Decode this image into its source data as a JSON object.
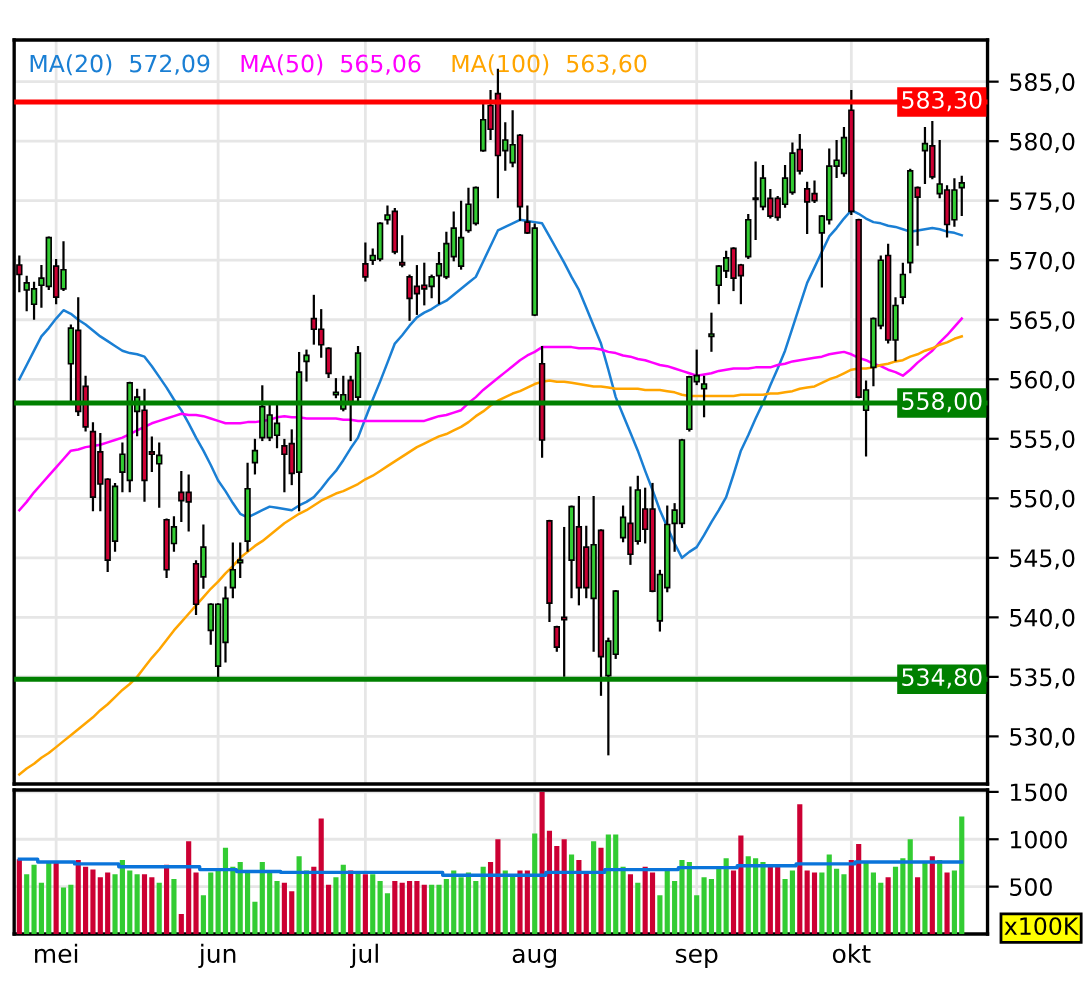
{
  "chart_data": [
    {
      "type": "candlestick",
      "categories": [
        null,
        null,
        null,
        null,
        null,
        null,
        null,
        null,
        null,
        null,
        null,
        null,
        null,
        null,
        null,
        null,
        null,
        null,
        null,
        null,
        null,
        null,
        null,
        null,
        null,
        null,
        null,
        null,
        null,
        null,
        null,
        null,
        null,
        null,
        null,
        null,
        null,
        null,
        null,
        null,
        null,
        null,
        null,
        null,
        null,
        null,
        null,
        null,
        null,
        null,
        null,
        null,
        null,
        null,
        null,
        null,
        null,
        null,
        null,
        null,
        null,
        null,
        null,
        null,
        null,
        null,
        null,
        null,
        null,
        null,
        null,
        null,
        null,
        null,
        null,
        null,
        null,
        null,
        null,
        null,
        null,
        null,
        null,
        null,
        null,
        null,
        null,
        null,
        null,
        null,
        null,
        null,
        null,
        null,
        null,
        null,
        null,
        null,
        null,
        null,
        null,
        null,
        null,
        null,
        null,
        null,
        null,
        null,
        null,
        null,
        null,
        null,
        null,
        null,
        null,
        null,
        null,
        null,
        null,
        null,
        null,
        null,
        null,
        null,
        null,
        null,
        null,
        null,
        null
      ],
      "ohlc": [
        [
          569.6,
          570.3,
          567.4,
          568.8
        ],
        [
          567.5,
          568.6,
          565.8,
          568.1
        ],
        [
          566.3,
          568.1,
          565.1,
          567.6
        ],
        [
          567.9,
          569.5,
          566.1,
          568.5
        ],
        [
          567.8,
          571.9,
          567.6,
          571.9
        ],
        [
          569.5,
          570.0,
          566.4,
          566.9
        ],
        [
          567.6,
          571.5,
          567.5,
          569.2
        ],
        [
          561.3,
          564.5,
          558.2,
          564.3
        ],
        [
          564.1,
          566.8,
          557.0,
          557.3
        ],
        [
          559.4,
          560.2,
          555.7,
          556.0
        ],
        [
          555.6,
          556.3,
          549.0,
          550.1
        ],
        [
          553.9,
          555.4,
          549.0,
          551.2
        ],
        [
          551.6,
          551.6,
          543.9,
          544.8
        ],
        [
          546.4,
          551.2,
          545.6,
          551.0
        ],
        [
          552.2,
          554.6,
          550.6,
          553.7
        ],
        [
          551.5,
          559.7,
          550.6,
          559.7
        ],
        [
          557.3,
          559.1,
          555.3,
          558.5
        ],
        [
          557.4,
          559.1,
          549.8,
          551.5
        ],
        [
          553.9,
          555.1,
          552.3,
          553.7
        ],
        [
          552.9,
          554.6,
          549.3,
          553.6
        ],
        [
          548.2,
          548.2,
          543.4,
          544.0
        ],
        [
          546.2,
          548.4,
          545.6,
          547.6
        ],
        [
          550.5,
          552.2,
          548.1,
          549.8
        ],
        [
          550.5,
          551.9,
          547.3,
          549.7
        ],
        [
          544.5,
          544.7,
          540.3,
          541.1
        ],
        [
          543.4,
          547.7,
          542.5,
          545.9
        ],
        [
          538.9,
          541.1,
          537.8,
          541.1
        ],
        [
          535.9,
          541.1,
          534.7,
          541.1
        ],
        [
          537.9,
          542.5,
          536.3,
          541.6
        ],
        [
          542.5,
          546.2,
          541.7,
          544.0
        ],
        [
          544.6,
          546.2,
          543.4,
          544.8
        ],
        [
          546.4,
          552.9,
          545.6,
          550.8
        ],
        [
          553.0,
          554.9,
          552.1,
          554.0
        ],
        [
          555.1,
          559.4,
          554.9,
          557.7
        ],
        [
          555.1,
          558.0,
          554.9,
          557.0
        ],
        [
          555.3,
          558.0,
          554.3,
          556.3
        ],
        [
          554.4,
          554.9,
          550.6,
          553.7
        ],
        [
          554.6,
          555.7,
          551.2,
          552.1
        ],
        [
          552.2,
          562.2,
          549.0,
          560.6
        ],
        [
          561.5,
          562.4,
          559.9,
          562.0
        ],
        [
          565.1,
          567.0,
          563.0,
          564.2
        ],
        [
          564.2,
          565.8,
          561.9,
          562.9
        ],
        [
          562.6,
          562.6,
          560.2,
          560.5
        ],
        [
          558.7,
          560.0,
          558.5,
          558.9
        ],
        [
          557.5,
          560.2,
          557.4,
          558.7
        ],
        [
          559.9,
          560.2,
          554.9,
          557.9
        ],
        [
          558.5,
          562.7,
          558.2,
          562.2
        ],
        [
          569.7,
          571.4,
          568.3,
          568.6
        ],
        [
          570.0,
          570.9,
          569.7,
          570.4
        ],
        [
          570.1,
          573.1,
          570.0,
          573.1
        ],
        [
          573.4,
          574.5,
          573.1,
          573.8
        ],
        [
          574.1,
          574.3,
          570.6,
          570.7
        ],
        [
          569.8,
          572.0,
          569.5,
          569.6
        ],
        [
          568.6,
          568.7,
          565.0,
          566.8
        ],
        [
          567.8,
          569.5,
          565.5,
          567.2
        ],
        [
          567.9,
          569.7,
          566.3,
          567.6
        ],
        [
          567.8,
          568.7,
          566.9,
          568.6
        ],
        [
          568.7,
          570.6,
          566.4,
          569.7
        ],
        [
          568.6,
          572.3,
          568.5,
          571.4
        ],
        [
          570.3,
          574.0,
          570.0,
          572.7
        ],
        [
          569.5,
          574.9,
          569.3,
          571.9
        ],
        [
          572.5,
          576.0,
          572.4,
          574.7
        ],
        [
          573.1,
          576.1,
          573.0,
          576.1
        ],
        [
          579.2,
          583.2,
          579.2,
          581.8
        ],
        [
          583.0,
          584.2,
          580.2,
          581.0
        ],
        [
          584.0,
          586.0,
          575.3,
          578.8
        ],
        [
          579.2,
          581.5,
          577.6,
          580.1
        ],
        [
          578.2,
          582.5,
          577.9,
          579.7
        ],
        [
          580.5,
          580.5,
          573.4,
          574.5
        ],
        [
          573.2,
          574.5,
          572.3,
          572.3
        ],
        [
          565.4,
          573.0,
          565.4,
          572.7
        ],
        [
          561.3,
          562.7,
          553.5,
          554.9
        ],
        [
          548.1,
          548.1,
          539.7,
          541.2
        ],
        [
          539.2,
          539.2,
          537.2,
          537.5
        ],
        [
          540.0,
          547.5,
          535.1,
          539.8
        ],
        [
          544.8,
          549.3,
          541.7,
          549.3
        ],
        [
          547.6,
          550.1,
          541.1,
          542.5
        ],
        [
          545.9,
          547.6,
          541.7,
          542.5
        ],
        [
          541.6,
          550.1,
          537.2,
          546.1
        ],
        [
          547.3,
          547.3,
          533.5,
          536.7
        ],
        [
          535.1,
          538.2,
          528.5,
          538.0
        ],
        [
          536.9,
          542.2,
          536.6,
          542.2
        ],
        [
          546.7,
          549.3,
          546.4,
          548.4
        ],
        [
          547.9,
          550.9,
          544.5,
          545.3
        ],
        [
          546.4,
          551.8,
          546.2,
          550.7
        ],
        [
          549.1,
          550.8,
          546.3,
          547.4
        ],
        [
          549.1,
          551.2,
          542.2,
          542.2
        ],
        [
          539.7,
          543.9,
          538.9,
          543.6
        ],
        [
          542.5,
          549.3,
          542.2,
          547.8
        ],
        [
          547.9,
          549.5,
          545.6,
          549.0
        ],
        [
          547.9,
          554.9,
          547.6,
          554.9
        ],
        [
          555.8,
          560.2,
          555.7,
          560.2
        ],
        [
          559.8,
          562.4,
          559.6,
          560.3
        ],
        [
          559.2,
          560.2,
          556.9,
          559.6
        ],
        [
          563.6,
          565.5,
          562.4,
          563.8
        ],
        [
          567.9,
          569.5,
          566.4,
          569.5
        ],
        [
          569.1,
          570.7,
          568.6,
          570.2
        ],
        [
          571.0,
          571.0,
          567.5,
          568.5
        ],
        [
          569.6,
          569.6,
          566.4,
          568.7
        ],
        [
          570.3,
          573.8,
          570.2,
          573.4
        ],
        [
          575.1,
          578.2,
          571.8,
          575.2
        ],
        [
          574.5,
          577.9,
          574.3,
          576.9
        ],
        [
          575.2,
          575.9,
          573.6,
          573.7
        ],
        [
          575.2,
          575.3,
          573.4,
          573.6
        ],
        [
          574.7,
          577.9,
          574.5,
          576.9
        ],
        [
          575.7,
          579.8,
          575.6,
          579.0
        ],
        [
          579.3,
          580.5,
          577.3,
          577.5
        ],
        [
          576.0,
          576.5,
          572.3,
          574.9
        ],
        [
          575.6,
          576.6,
          574.9,
          575.0
        ],
        [
          572.3,
          573.7,
          567.8,
          573.7
        ],
        [
          573.4,
          579.3,
          573.1,
          577.9
        ],
        [
          577.9,
          580.0,
          577.0,
          578.4
        ],
        [
          577.3,
          581.1,
          577.1,
          580.3
        ],
        [
          582.6,
          584.2,
          573.9,
          574.1
        ],
        [
          573.4,
          573.4,
          558.5,
          558.5
        ],
        [
          557.4,
          559.8,
          553.6,
          559.1
        ],
        [
          561.0,
          565.1,
          559.5,
          565.1
        ],
        [
          564.5,
          570.3,
          564.3,
          570.0
        ],
        [
          570.4,
          571.3,
          563.1,
          563.3
        ],
        [
          563.3,
          566.8,
          561.6,
          566.2
        ],
        [
          566.9,
          569.7,
          566.4,
          568.8
        ],
        [
          569.8,
          577.6,
          569.0,
          577.5
        ],
        [
          576.1,
          576.1,
          571.3,
          575.3
        ],
        [
          579.2,
          581.1,
          576.5,
          579.8
        ],
        [
          579.6,
          581.6,
          576.9,
          577.0
        ],
        [
          575.6,
          580.0,
          575.3,
          576.4
        ],
        [
          575.9,
          576.2,
          572.0,
          573.0
        ],
        [
          573.4,
          576.8,
          572.9,
          575.9
        ],
        [
          576.1,
          577.0,
          573.8,
          576.5
        ]
      ],
      "colors": [
        "#cc0033",
        "#33cc33",
        "#33cc33",
        "#33cc33",
        "#33cc33",
        "#cc0033",
        "#33cc33",
        "#33cc33",
        "#cc0033",
        "#cc0033",
        "#cc0033",
        "#cc0033",
        "#cc0033",
        "#33cc33",
        "#33cc33",
        "#33cc33",
        "#33cc33",
        "#cc0033",
        "#cc0033",
        "#33cc33",
        "#cc0033",
        "#33cc33",
        "#cc0033",
        "#cc0033",
        "#cc0033",
        "#33cc33",
        "#33cc33",
        "#33cc33",
        "#33cc33",
        "#33cc33",
        "#33cc33",
        "#33cc33",
        "#33cc33",
        "#33cc33",
        "#33cc33",
        "#33cc33",
        "#cc0033",
        "#cc0033",
        "#33cc33",
        "#33cc33",
        "#cc0033",
        "#cc0033",
        "#cc0033",
        "#33cc33",
        "#33cc33",
        "#cc0033",
        "#33cc33",
        "#cc0033",
        "#33cc33",
        "#33cc33",
        "#33cc33",
        "#cc0033",
        "#cc0033",
        "#cc0033",
        "#cc0033",
        "#cc0033",
        "#33cc33",
        "#33cc33",
        "#33cc33",
        "#33cc33",
        "#33cc33",
        "#33cc33",
        "#33cc33",
        "#33cc33",
        "#cc0033",
        "#cc0033",
        "#33cc33",
        "#33cc33",
        "#cc0033",
        "#cc0033",
        "#33cc33",
        "#cc0033",
        "#cc0033",
        "#cc0033",
        "#cc0033",
        "#33cc33",
        "#cc0033",
        "#cc0033",
        "#33cc33",
        "#cc0033",
        "#33cc33",
        "#33cc33",
        "#33cc33",
        "#cc0033",
        "#33cc33",
        "#cc0033",
        "#cc0033",
        "#33cc33",
        "#33cc33",
        "#33cc33",
        "#33cc33",
        "#33cc33",
        "#33cc33",
        "#33cc33",
        "#33cc33",
        "#33cc33",
        "#33cc33",
        "#cc0033",
        "#cc0033",
        "#33cc33",
        "#33cc33",
        "#33cc33",
        "#cc0033",
        "#cc0033",
        "#33cc33",
        "#33cc33",
        "#cc0033",
        "#cc0033",
        "#cc0033",
        "#33cc33",
        "#33cc33",
        "#33cc33",
        "#33cc33",
        "#cc0033",
        "#cc0033",
        "#33cc33",
        "#33cc33",
        "#33cc33",
        "#cc0033",
        "#33cc33",
        "#33cc33",
        "#33cc33",
        "#cc0033",
        "#33cc33",
        "#cc0033",
        "#33cc33",
        "#cc0033",
        "#33cc33",
        "#33cc33"
      ],
      "series": [
        {
          "type": "line",
          "name": "MA(20)  572,09",
          "color": "#1a7fd4",
          "values": [
            560.0,
            561.2,
            562.4,
            563.6,
            564.3,
            565.1,
            565.8,
            565.5,
            565.0,
            564.6,
            564.1,
            563.6,
            563.2,
            562.8,
            562.4,
            562.2,
            562.1,
            561.9,
            561.1,
            560.2,
            559.3,
            558.3,
            557.4,
            556.3,
            555.1,
            554.0,
            552.8,
            551.5,
            550.6,
            549.6,
            548.7,
            548.4,
            548.7,
            549.0,
            549.3,
            549.2,
            549.1,
            549.0,
            549.4,
            549.7,
            550.1,
            550.8,
            551.6,
            552.3,
            553.2,
            554.2,
            555.1,
            556.7,
            558.3,
            559.8,
            561.4,
            563.0,
            563.7,
            564.5,
            565.2,
            565.6,
            565.9,
            566.3,
            566.6,
            567.1,
            567.6,
            568.1,
            568.6,
            569.9,
            571.2,
            572.5,
            572.8,
            573.1,
            573.4,
            573.3,
            573.2,
            573.1,
            572.0,
            570.9,
            569.8,
            568.6,
            567.5,
            566.0,
            564.5,
            563.0,
            560.8,
            558.5,
            557.0,
            555.5,
            554.0,
            552.3,
            550.7,
            549.0,
            547.6,
            546.2,
            545.0,
            545.5,
            545.9,
            546.9,
            548.0,
            549.0,
            550.1,
            552.0,
            554.0,
            555.3,
            556.7,
            558.0,
            559.5,
            560.9,
            562.4,
            564.3,
            566.2,
            568.1,
            569.4,
            570.7,
            572.0,
            572.7,
            573.5,
            574.2,
            573.9,
            573.5,
            573.2,
            573.1,
            572.9,
            572.8,
            572.6,
            572.4,
            572.5,
            572.6,
            572.7,
            572.6,
            572.4,
            572.3,
            572.1
          ]
        },
        {
          "type": "line",
          "name": "MA(50)  565,06",
          "color": "#ff00ff",
          "values": [
            549.0,
            549.7,
            550.5,
            551.2,
            551.9,
            552.6,
            553.3,
            554.0,
            554.1,
            554.3,
            554.4,
            554.5,
            554.7,
            554.9,
            555.1,
            555.4,
            555.7,
            556.0,
            556.3,
            556.5,
            556.7,
            556.9,
            557.1,
            557.0,
            557.0,
            556.9,
            556.7,
            556.5,
            556.3,
            556.3,
            556.3,
            556.4,
            556.4,
            556.5,
            556.6,
            556.8,
            556.9,
            556.8,
            556.8,
            556.7,
            556.7,
            556.7,
            556.7,
            556.7,
            556.6,
            556.6,
            556.5,
            556.5,
            556.5,
            556.5,
            556.5,
            556.5,
            556.5,
            556.5,
            556.5,
            556.5,
            556.7,
            556.9,
            557.0,
            557.2,
            557.4,
            558.0,
            558.5,
            559.1,
            559.6,
            560.1,
            560.6,
            561.1,
            561.6,
            562.0,
            562.3,
            562.7,
            562.7,
            562.7,
            562.7,
            562.7,
            562.6,
            562.6,
            562.6,
            562.5,
            562.3,
            562.2,
            562.0,
            561.9,
            561.7,
            561.6,
            561.4,
            561.2,
            561.1,
            560.9,
            560.7,
            560.5,
            560.3,
            560.4,
            560.5,
            560.7,
            560.8,
            560.9,
            560.9,
            560.9,
            561.0,
            561.0,
            561.0,
            561.2,
            561.3,
            561.5,
            561.6,
            561.7,
            561.8,
            561.9,
            562.1,
            562.2,
            562.3,
            562.1,
            561.8,
            561.6,
            561.3,
            561.1,
            560.8,
            560.6,
            560.3,
            560.8,
            561.4,
            561.9,
            562.4,
            563.1,
            563.7,
            564.4,
            565.1
          ]
        },
        {
          "type": "line",
          "name": "MA(100)  563,60",
          "color": "#ffa500",
          "values": [
            526.8,
            527.3,
            527.7,
            528.2,
            528.6,
            529.1,
            529.6,
            530.1,
            530.6,
            531.1,
            531.6,
            532.2,
            532.7,
            533.3,
            533.9,
            534.4,
            535.0,
            535.8,
            536.6,
            537.3,
            538.1,
            538.9,
            539.6,
            540.3,
            541.0,
            541.7,
            542.4,
            543.0,
            543.7,
            544.3,
            545.0,
            545.5,
            546.0,
            546.4,
            546.9,
            547.4,
            547.9,
            548.3,
            548.7,
            549.0,
            549.4,
            549.8,
            550.1,
            550.4,
            550.6,
            550.9,
            551.2,
            551.6,
            551.9,
            552.3,
            552.7,
            553.1,
            553.5,
            553.9,
            554.3,
            554.6,
            554.9,
            555.2,
            555.4,
            555.7,
            556.0,
            556.4,
            556.9,
            557.3,
            557.8,
            558.2,
            558.5,
            558.8,
            559.0,
            559.3,
            559.6,
            559.8,
            559.9,
            559.8,
            559.8,
            559.7,
            559.6,
            559.5,
            559.4,
            559.4,
            559.3,
            559.2,
            559.2,
            559.2,
            559.2,
            559.1,
            559.1,
            559.1,
            559.0,
            558.9,
            558.7,
            558.6,
            558.6,
            558.6,
            558.6,
            558.6,
            558.6,
            558.6,
            558.7,
            558.7,
            558.7,
            558.7,
            558.8,
            558.8,
            558.9,
            559.0,
            559.2,
            559.3,
            559.4,
            559.7,
            560.0,
            560.2,
            560.5,
            560.8,
            560.9,
            560.9,
            561.0,
            561.2,
            561.3,
            561.5,
            561.6,
            561.9,
            562.1,
            562.4,
            562.6,
            562.9,
            563.1,
            563.4,
            563.6
          ]
        }
      ],
      "ylim": [
        526,
        588.5
      ],
      "yticks": [
        {
          "value": 530,
          "label": "530,0"
        },
        {
          "value": 535,
          "label": "535,0"
        },
        {
          "value": 540,
          "label": "540,0"
        },
        {
          "value": 545,
          "label": "545,0"
        },
        {
          "value": 550,
          "label": "550,0"
        },
        {
          "value": 555,
          "label": "555,0"
        },
        {
          "value": 560,
          "label": "560,0"
        },
        {
          "value": 565,
          "label": "565,0"
        },
        {
          "value": 570,
          "label": "570,0"
        },
        {
          "value": 575,
          "label": "575,0"
        },
        {
          "value": 580,
          "label": "580,0"
        },
        {
          "value": 585,
          "label": "585,0"
        }
      ],
      "tick_labels": "y",
      "ref_lines": [
        {
          "axis": "y",
          "value": 583.3,
          "label": "583,30",
          "color": "#ff0000"
        },
        {
          "axis": "y",
          "value": 558.0,
          "label": "558,00",
          "color": "#008000"
        },
        {
          "axis": "y",
          "value": 534.8,
          "label": "534,80",
          "color": "#008000"
        }
      ],
      "grid": true,
      "legend": "top left"
    },
    {
      "type": "bar",
      "categories": [
        null,
        null,
        null,
        null,
        null,
        "mei",
        null,
        null,
        null,
        null,
        null,
        null,
        null,
        null,
        null,
        null,
        null,
        null,
        null,
        null,
        null,
        null,
        null,
        null,
        null,
        null,
        null,
        "jun",
        null,
        null,
        null,
        null,
        null,
        null,
        null,
        null,
        null,
        null,
        null,
        null,
        null,
        null,
        null,
        null,
        null,
        null,
        null,
        "jul",
        null,
        null,
        null,
        null,
        null,
        null,
        null,
        null,
        null,
        null,
        null,
        null,
        null,
        null,
        null,
        null,
        null,
        null,
        null,
        null,
        null,
        null,
        "aug",
        null,
        null,
        null,
        null,
        null,
        null,
        null,
        null,
        null,
        null,
        null,
        null,
        null,
        null,
        null,
        null,
        null,
        null,
        null,
        null,
        null,
        "sep",
        null,
        null,
        null,
        null,
        null,
        null,
        null,
        null,
        null,
        null,
        null,
        null,
        null,
        null,
        null,
        null,
        null,
        null,
        null,
        null,
        "okt",
        null,
        null,
        null,
        null,
        null,
        null,
        null,
        null,
        null,
        null,
        null,
        null,
        null,
        null,
        null
      ],
      "series": [
        {
          "type": "bar",
          "values": [
            790,
            630,
            730,
            540,
            750,
            750,
            490,
            520,
            780,
            710,
            680,
            600,
            650,
            630,
            780,
            670,
            630,
            630,
            600,
            540,
            730,
            580,
            210,
            980,
            650,
            410,
            650,
            680,
            910,
            710,
            760,
            670,
            340,
            760,
            650,
            560,
            540,
            450,
            820,
            670,
            710,
            1220,
            520,
            600,
            730,
            670,
            650,
            630,
            630,
            560,
            430,
            560,
            540,
            560,
            560,
            520,
            520,
            520,
            580,
            670,
            600,
            650,
            560,
            710,
            760,
            1000,
            670,
            630,
            670,
            670,
            1060,
            1500,
            1090,
            930,
            1000,
            840,
            780,
            650,
            980,
            910,
            1050,
            1050,
            710,
            630,
            540,
            710,
            650,
            410,
            670,
            560,
            780,
            760,
            410,
            600,
            580,
            710,
            800,
            670,
            1040,
            820,
            800,
            760,
            730,
            730,
            580,
            670,
            1370,
            670,
            650,
            650,
            840,
            690,
            630,
            780,
            950,
            760,
            650,
            540,
            600,
            710,
            800,
            1000,
            600,
            760,
            820,
            780,
            650,
            670,
            1240
          ],
          "colors": [
            "#cc0033",
            "#33cc33",
            "#33cc33",
            "#33cc33",
            "#33cc33",
            "#cc0033",
            "#33cc33",
            "#33cc33",
            "#cc0033",
            "#cc0033",
            "#cc0033",
            "#cc0033",
            "#cc0033",
            "#33cc33",
            "#33cc33",
            "#33cc33",
            "#33cc33",
            "#cc0033",
            "#cc0033",
            "#33cc33",
            "#cc0033",
            "#33cc33",
            "#cc0033",
            "#cc0033",
            "#cc0033",
            "#33cc33",
            "#33cc33",
            "#33cc33",
            "#33cc33",
            "#33cc33",
            "#33cc33",
            "#33cc33",
            "#33cc33",
            "#33cc33",
            "#33cc33",
            "#33cc33",
            "#cc0033",
            "#cc0033",
            "#33cc33",
            "#33cc33",
            "#cc0033",
            "#cc0033",
            "#cc0033",
            "#33cc33",
            "#33cc33",
            "#cc0033",
            "#33cc33",
            "#cc0033",
            "#33cc33",
            "#33cc33",
            "#33cc33",
            "#cc0033",
            "#cc0033",
            "#cc0033",
            "#cc0033",
            "#cc0033",
            "#33cc33",
            "#33cc33",
            "#33cc33",
            "#33cc33",
            "#33cc33",
            "#33cc33",
            "#33cc33",
            "#33cc33",
            "#cc0033",
            "#cc0033",
            "#33cc33",
            "#33cc33",
            "#cc0033",
            "#cc0033",
            "#33cc33",
            "#cc0033",
            "#cc0033",
            "#cc0033",
            "#cc0033",
            "#33cc33",
            "#cc0033",
            "#cc0033",
            "#33cc33",
            "#cc0033",
            "#33cc33",
            "#33cc33",
            "#33cc33",
            "#cc0033",
            "#33cc33",
            "#cc0033",
            "#cc0033",
            "#33cc33",
            "#33cc33",
            "#33cc33",
            "#33cc33",
            "#33cc33",
            "#33cc33",
            "#33cc33",
            "#33cc33",
            "#33cc33",
            "#33cc33",
            "#cc0033",
            "#cc0033",
            "#33cc33",
            "#33cc33",
            "#33cc33",
            "#cc0033",
            "#cc0033",
            "#33cc33",
            "#33cc33",
            "#cc0033",
            "#cc0033",
            "#cc0033",
            "#33cc33",
            "#33cc33",
            "#33cc33",
            "#33cc33",
            "#cc0033",
            "#cc0033",
            "#33cc33",
            "#33cc33",
            "#33cc33",
            "#cc0033",
            "#33cc33",
            "#33cc33",
            "#33cc33",
            "#cc0033",
            "#33cc33",
            "#cc0033",
            "#33cc33",
            "#cc0033",
            "#33cc33",
            "#33cc33"
          ]
        },
        {
          "type": "step",
          "color": "#0a74da",
          "values": [
            790,
            790,
            790,
            760,
            760,
            760,
            760,
            760,
            740,
            740,
            740,
            740,
            740,
            740,
            710,
            710,
            710,
            710,
            710,
            710,
            710,
            710,
            710,
            710,
            710,
            680,
            680,
            680,
            680,
            680,
            660,
            660,
            660,
            660,
            660,
            660,
            650,
            650,
            650,
            650,
            650,
            650,
            650,
            650,
            650,
            650,
            650,
            650,
            650,
            650,
            650,
            650,
            650,
            650,
            650,
            650,
            650,
            650,
            620,
            620,
            620,
            620,
            620,
            620,
            620,
            620,
            620,
            620,
            620,
            620,
            620,
            620,
            650,
            650,
            650,
            650,
            650,
            650,
            650,
            650,
            680,
            680,
            680,
            680,
            680,
            680,
            680,
            680,
            680,
            680,
            700,
            700,
            700,
            700,
            700,
            700,
            700,
            700,
            720,
            720,
            720,
            720,
            720,
            720,
            720,
            720,
            740,
            740,
            740,
            740,
            740,
            740,
            740,
            740,
            760,
            760,
            760,
            760,
            760,
            760,
            760,
            760,
            760,
            760,
            760,
            760,
            760,
            760,
            760
          ]
        }
      ],
      "ylim": [
        0,
        1520
      ],
      "yticks": [
        500,
        1000,
        1500
      ],
      "ylabel": "x100K",
      "grid": true
    }
  ]
}
